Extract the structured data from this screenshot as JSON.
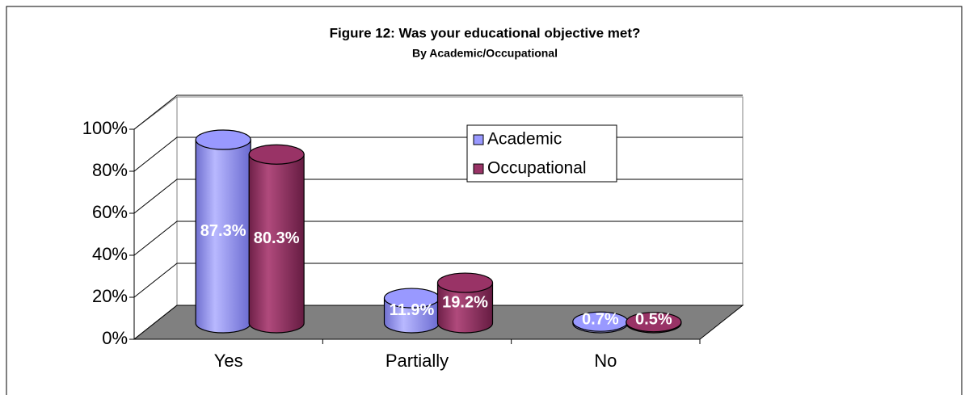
{
  "chart_data": {
    "type": "bar3d",
    "title": "Figure 12: Was your educational objective met?",
    "subtitle": "By Academic/Occupational",
    "categories": [
      "Yes",
      "Partially",
      "No"
    ],
    "series": [
      {
        "name": "Academic",
        "color": "#9999ff",
        "values": [
          87.3,
          11.9,
          0.7
        ],
        "value_labels": [
          "87.3%",
          "11.9%",
          "0.7%"
        ]
      },
      {
        "name": "Occupational",
        "color": "#993366",
        "values": [
          80.3,
          19.2,
          0.5
        ],
        "value_labels": [
          "80.3%",
          "19.2%",
          "0.5%"
        ]
      }
    ],
    "ylim": [
      0,
      100
    ],
    "yticks": [
      {
        "value": 0,
        "label": "0%"
      },
      {
        "value": 20,
        "label": "20%"
      },
      {
        "value": 40,
        "label": "40%"
      },
      {
        "value": 60,
        "label": "60%"
      },
      {
        "value": 80,
        "label": "80%"
      },
      {
        "value": 100,
        "label": "100%"
      }
    ],
    "grid": true
  }
}
